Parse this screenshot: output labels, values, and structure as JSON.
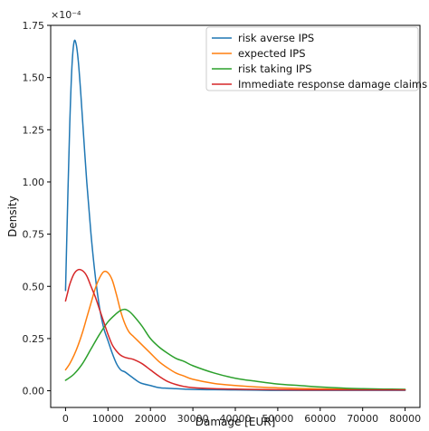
{
  "chart_data": {
    "type": "line",
    "xlabel": "Damage [EUR]",
    "ylabel": "Density",
    "y_multiplier_label": "×10⁻⁴",
    "xlim": [
      -3500,
      83500
    ],
    "ylim": [
      -0.08,
      1.75
    ],
    "xticks": [
      0,
      10000,
      20000,
      30000,
      40000,
      50000,
      60000,
      70000,
      80000
    ],
    "xtick_labels": [
      "0",
      "10000",
      "20000",
      "30000",
      "40000",
      "50000",
      "60000",
      "70000",
      "80000"
    ],
    "yticks": [
      0.0,
      0.25,
      0.5,
      0.75,
      1.0,
      1.25,
      1.5,
      1.75
    ],
    "ytick_labels": [
      "0.00",
      "0.25",
      "0.50",
      "0.75",
      "1.00",
      "1.25",
      "1.50",
      "1.75"
    ],
    "grid": false,
    "legend_position": "top-right",
    "series": [
      {
        "name": "risk averse IPS",
        "color": "#1f77b4",
        "x": [
          0,
          500,
          1000,
          1500,
          2000,
          2500,
          3000,
          3500,
          4000,
          5000,
          6000,
          7000,
          8000,
          9000,
          10000,
          11000,
          12000,
          13000,
          14000,
          15000,
          16000,
          17000,
          18000,
          20000,
          22000,
          24000,
          26000,
          28000,
          30000,
          35000,
          40000,
          45000,
          50000,
          60000,
          70000,
          80000
        ],
        "y": [
          0.48,
          0.9,
          1.28,
          1.55,
          1.67,
          1.66,
          1.58,
          1.45,
          1.3,
          1.0,
          0.75,
          0.55,
          0.4,
          0.3,
          0.24,
          0.18,
          0.13,
          0.1,
          0.09,
          0.075,
          0.06,
          0.045,
          0.035,
          0.025,
          0.015,
          0.012,
          0.01,
          0.008,
          0.006,
          0.005,
          0.004,
          0.003,
          0.002,
          0.002,
          0.002,
          0.002
        ]
      },
      {
        "name": "expected IPS",
        "color": "#ff7f0e",
        "x": [
          0,
          1000,
          2000,
          3000,
          4000,
          5000,
          6000,
          7000,
          8000,
          9000,
          10000,
          11000,
          12000,
          13000,
          14000,
          15000,
          16000,
          17000,
          18000,
          20000,
          22000,
          24000,
          26000,
          28000,
          30000,
          35000,
          40000,
          45000,
          50000,
          55000,
          60000,
          65000,
          70000,
          75000,
          80000
        ],
        "y": [
          0.1,
          0.13,
          0.17,
          0.22,
          0.28,
          0.35,
          0.42,
          0.49,
          0.54,
          0.57,
          0.565,
          0.53,
          0.46,
          0.38,
          0.32,
          0.28,
          0.26,
          0.24,
          0.22,
          0.18,
          0.14,
          0.11,
          0.085,
          0.07,
          0.055,
          0.035,
          0.025,
          0.018,
          0.014,
          0.011,
          0.009,
          0.008,
          0.007,
          0.006,
          0.005
        ]
      },
      {
        "name": "risk taking IPS",
        "color": "#2ca02c",
        "x": [
          0,
          2000,
          4000,
          6000,
          8000,
          10000,
          12000,
          13000,
          14000,
          15000,
          16000,
          18000,
          20000,
          22000,
          24000,
          26000,
          28000,
          30000,
          35000,
          40000,
          45000,
          50000,
          55000,
          60000,
          65000,
          70000,
          75000,
          80000
        ],
        "y": [
          0.05,
          0.08,
          0.13,
          0.2,
          0.27,
          0.33,
          0.37,
          0.385,
          0.39,
          0.38,
          0.36,
          0.31,
          0.25,
          0.21,
          0.18,
          0.155,
          0.14,
          0.12,
          0.085,
          0.06,
          0.045,
          0.032,
          0.025,
          0.018,
          0.013,
          0.01,
          0.008,
          0.007
        ]
      },
      {
        "name": "Immediate response damage claims",
        "color": "#d62728",
        "x": [
          0,
          500,
          1000,
          2000,
          3000,
          4000,
          5000,
          6000,
          7000,
          8000,
          9000,
          10000,
          11000,
          12000,
          13000,
          14000,
          15000,
          16000,
          18000,
          20000,
          22000,
          24000,
          26000,
          28000,
          30000,
          35000,
          40000,
          45000,
          50000,
          60000,
          70000,
          80000
        ],
        "y": [
          0.43,
          0.47,
          0.51,
          0.56,
          0.58,
          0.575,
          0.55,
          0.5,
          0.45,
          0.39,
          0.33,
          0.27,
          0.22,
          0.19,
          0.17,
          0.16,
          0.155,
          0.15,
          0.13,
          0.1,
          0.07,
          0.045,
          0.03,
          0.02,
          0.015,
          0.01,
          0.008,
          0.006,
          0.005,
          0.004,
          0.004,
          0.004
        ]
      }
    ]
  }
}
